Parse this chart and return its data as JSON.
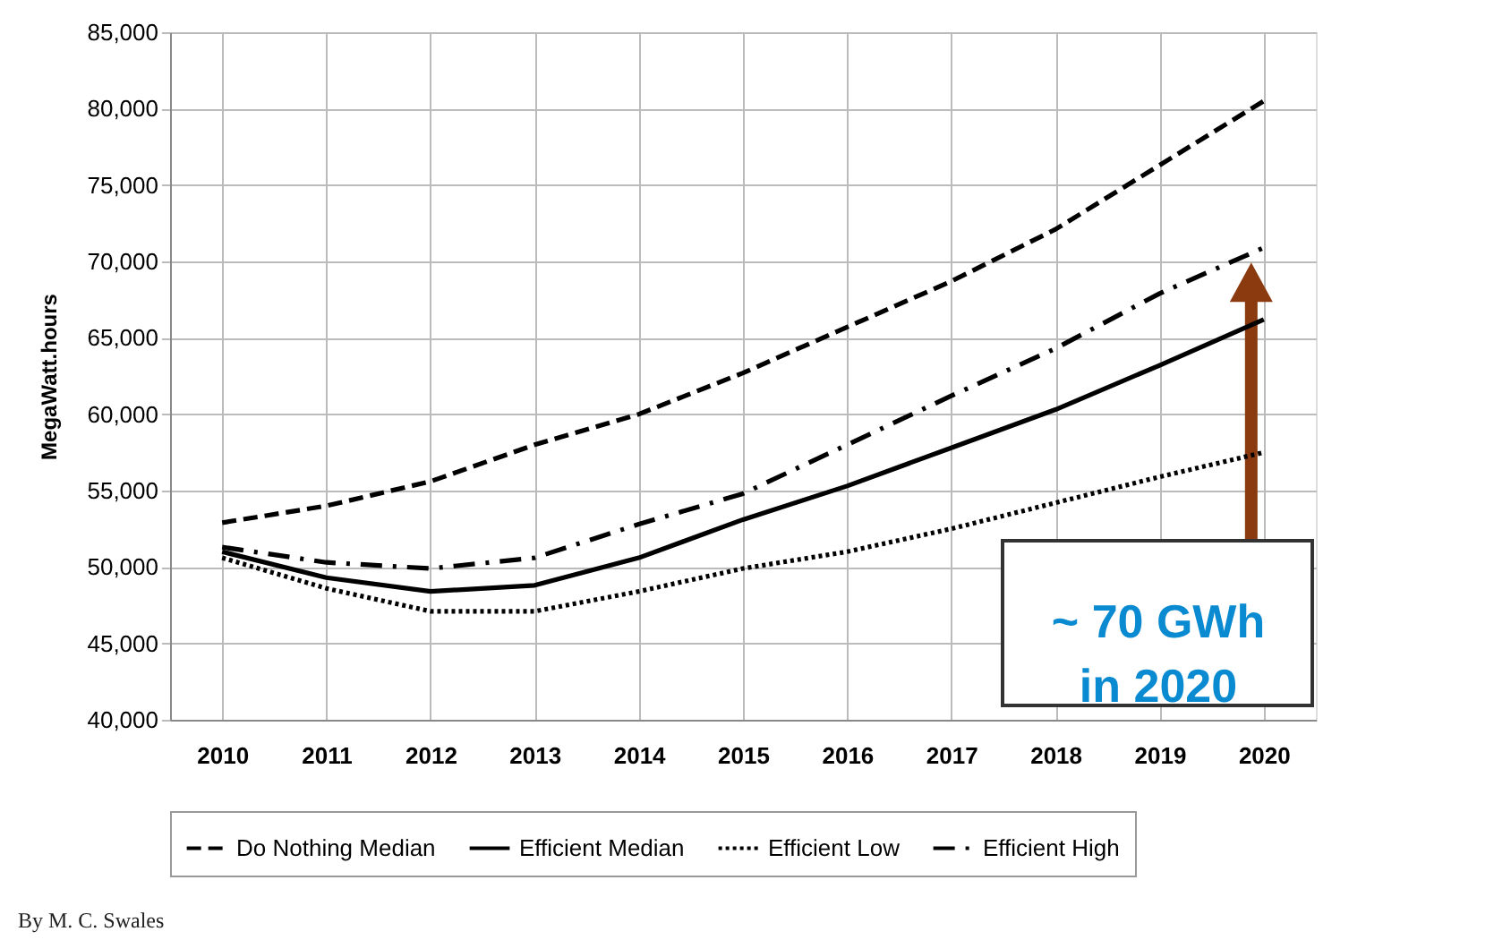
{
  "chart_data": {
    "type": "line",
    "ylabel": "MegaWatt.hours",
    "categories": [
      "2010",
      "2011",
      "2012",
      "2013",
      "2014",
      "2015",
      "2016",
      "2017",
      "2018",
      "2019",
      "2020"
    ],
    "series": [
      {
        "name": "Do Nothing Median",
        "color": "#000000",
        "line_style": "dashed",
        "values": [
          52900,
          54000,
          55600,
          58000,
          60000,
          62700,
          65700,
          68700,
          72100,
          76300,
          80500
        ]
      },
      {
        "name": "Efficient Median",
        "color": "#000000",
        "line_style": "solid",
        "values": [
          51000,
          49300,
          48400,
          48800,
          50600,
          53100,
          55300,
          57800,
          60300,
          63200,
          66200
        ]
      },
      {
        "name": "Efficient Low",
        "color": "#000000",
        "line_style": "dotted",
        "values": [
          50600,
          48600,
          47100,
          47100,
          48400,
          49900,
          51000,
          52500,
          54200,
          55900,
          57500
        ]
      },
      {
        "name": "Efficient High",
        "color": "#000000",
        "line_style": "dashdot",
        "values": [
          51300,
          50300,
          49900,
          50600,
          52800,
          54800,
          58000,
          61200,
          64300,
          67900,
          70900
        ]
      }
    ],
    "ylim": [
      40000,
      85000
    ],
    "yticks": [
      {
        "value": 40000,
        "label": "40,000"
      },
      {
        "value": 45000,
        "label": "45,000"
      },
      {
        "value": 50000,
        "label": "50,000"
      },
      {
        "value": 55000,
        "label": "55,000"
      },
      {
        "value": 60000,
        "label": "60,000"
      },
      {
        "value": 65000,
        "label": "65,000"
      },
      {
        "value": 70000,
        "label": "70,000"
      },
      {
        "value": 75000,
        "label": "75,000"
      },
      {
        "value": 80000,
        "label": "80,000"
      },
      {
        "value": 85000,
        "label": "85,000"
      }
    ],
    "grid": true,
    "legend": "bottom",
    "annotations": [
      "~ 70 GWh\nin 2020",
      "By M. C. Swales"
    ]
  }
}
